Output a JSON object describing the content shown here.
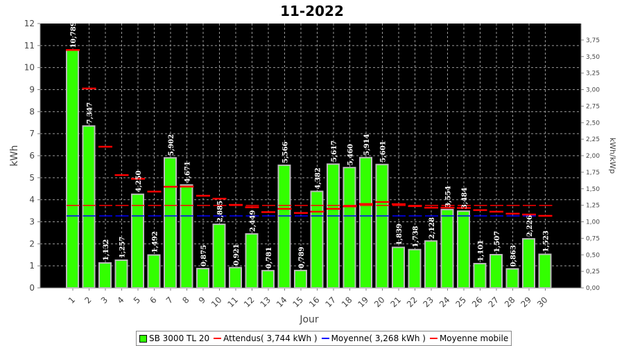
{
  "chart_data": {
    "type": "bar",
    "title": "11-2022",
    "xlabel": "Jour",
    "ylabel": "kWh",
    "y2label": "kWh/kWp",
    "ylim": [
      0,
      12
    ],
    "y2lim": [
      0,
      4
    ],
    "yticks": [
      "0",
      "1",
      "2",
      "3",
      "4",
      "5",
      "6",
      "7",
      "8",
      "9",
      "10",
      "11",
      "12"
    ],
    "y2ticks": [
      "0,00",
      "0,25",
      "0,50",
      "0,75",
      "1,00",
      "1,25",
      "1,50",
      "1,75",
      "2,00",
      "2,25",
      "2,50",
      "2,75",
      "3,00",
      "3,25",
      "3,50",
      "3,75"
    ],
    "categories": [
      "1",
      "2",
      "3",
      "4",
      "5",
      "6",
      "7",
      "8",
      "9",
      "10",
      "11",
      "12",
      "13",
      "14",
      "15",
      "16",
      "17",
      "18",
      "19",
      "20",
      "21",
      "22",
      "23",
      "24",
      "25",
      "26",
      "27",
      "28",
      "29",
      "30"
    ],
    "values": [
      10.789,
      7.347,
      1.132,
      1.257,
      4.25,
      1.492,
      5.902,
      4.671,
      0.875,
      2.885,
      0.921,
      2.449,
      0.781,
      5.566,
      0.789,
      4.382,
      5.617,
      5.46,
      5.914,
      5.601,
      1.839,
      1.738,
      2.128,
      3.554,
      3.484,
      1.101,
      1.507,
      0.863,
      2.226,
      1.523
    ],
    "value_labels": [
      "10,789",
      "7,347",
      "1,132",
      "1,257",
      "4,250",
      "1,492",
      "5,902",
      "4,671",
      "0,875",
      "2,885",
      "0,921",
      "2,449",
      "0,781",
      "5,566",
      "0,789",
      "4,382",
      "5,617",
      "5,460",
      "5,914",
      "5,601",
      "1,839",
      "1,738",
      "2,128",
      "3,554",
      "3,484",
      "1,101",
      "1,507",
      "0,863",
      "2,226",
      "1,523"
    ],
    "moyenne_mobile": [
      10.8,
      9.05,
      6.41,
      5.12,
      4.95,
      4.37,
      4.59,
      4.6,
      4.18,
      4.05,
      3.77,
      3.66,
      3.44,
      3.59,
      3.4,
      3.46,
      3.59,
      3.7,
      3.81,
      3.9,
      3.8,
      3.71,
      3.64,
      3.64,
      3.63,
      3.53,
      3.46,
      3.37,
      3.33,
      3.27
    ],
    "attendus": 3.744,
    "moyenne": 3.268,
    "grid": true,
    "legend_position": "bottom",
    "colors": {
      "bar": "#33ff00",
      "bar_edge": "#bcbcbc",
      "attendus": "#ff0000",
      "moyenne": "#0000ff",
      "moyenne_mobile": "#ff0000",
      "plot_bg": "#000000"
    },
    "series": [
      {
        "name": "SB 3000 TL 20"
      },
      {
        "name": "Attendus( 3,744 kWh )"
      },
      {
        "name": "Moyenne( 3,268 kWh )"
      },
      {
        "name": "Moyenne mobile"
      }
    ]
  }
}
